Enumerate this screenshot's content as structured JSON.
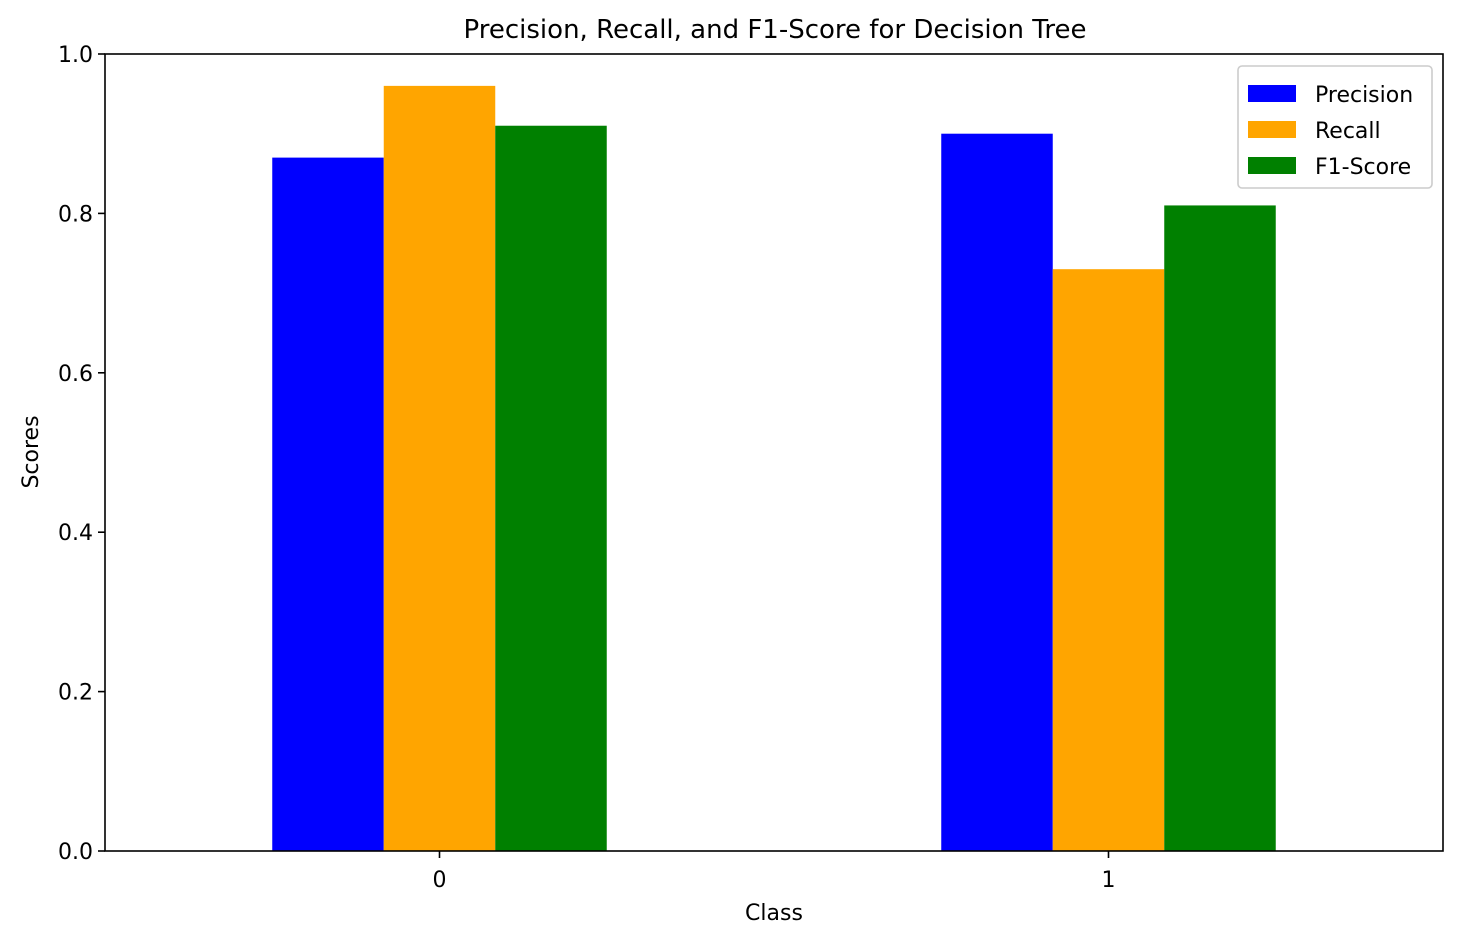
{
  "chart_data": {
    "type": "bar",
    "title": "Precision, Recall, and F1-Score for Decision Tree",
    "xlabel": "Class",
    "ylabel": "Scores",
    "categories": [
      "0",
      "1"
    ],
    "ylim": [
      0,
      1.0
    ],
    "yticks": [
      "0.0",
      "0.2",
      "0.4",
      "0.6",
      "0.8",
      "1.0"
    ],
    "grid": false,
    "legend_position": "top-right",
    "series": [
      {
        "name": "Precision",
        "color": "#0000ff",
        "values": [
          0.87,
          0.9
        ]
      },
      {
        "name": "Recall",
        "color": "#ffa500",
        "values": [
          0.96,
          0.73
        ]
      },
      {
        "name": "F1-Score",
        "color": "#008000",
        "values": [
          0.91,
          0.81
        ]
      }
    ]
  }
}
